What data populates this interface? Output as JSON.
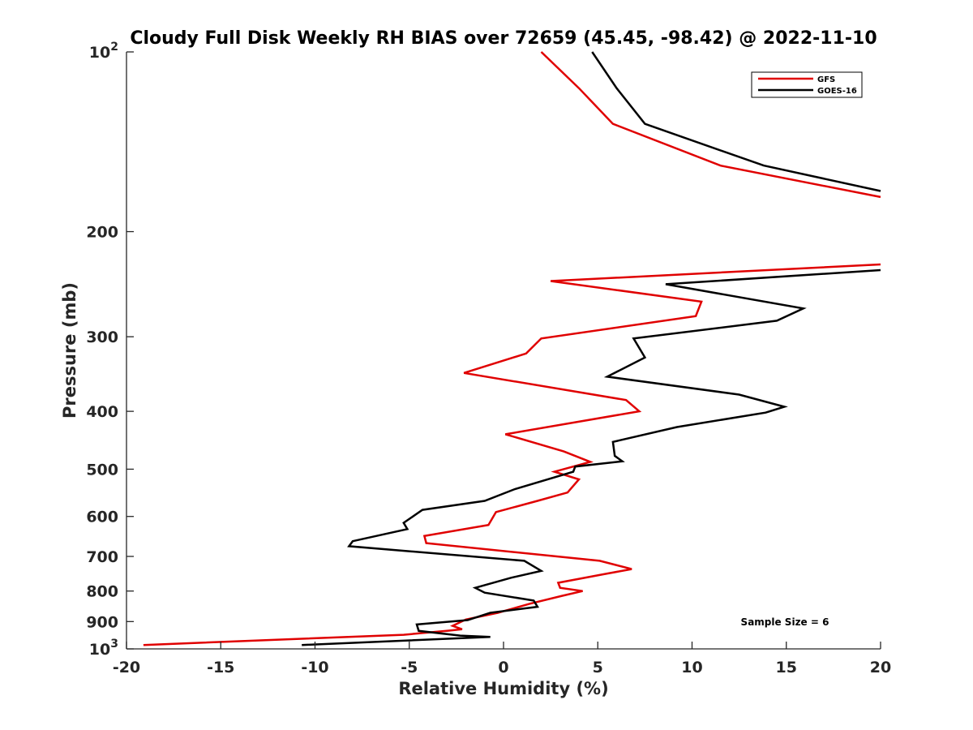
{
  "chart_data": {
    "type": "line",
    "title": "Cloudy Full Disk Weekly RH BIAS over 72659 (45.45, -98.42) @ 2022-11-10",
    "xlabel": "Relative Humidity (%)",
    "ylabel": "Pressure (mb)",
    "xlim": [
      -20,
      20
    ],
    "ylim": [
      100,
      1000
    ],
    "y_scale": "log",
    "y_reversed": true,
    "x_ticks": [
      "-20",
      "-15",
      "-10",
      "-5",
      "0",
      "5",
      "10",
      "15",
      "20"
    ],
    "y_ticks": [
      {
        "value": 100,
        "base": "10",
        "exp": "2"
      },
      {
        "value": 200,
        "label": "200"
      },
      {
        "value": 300,
        "label": "300"
      },
      {
        "value": 400,
        "label": "400"
      },
      {
        "value": 500,
        "label": "500"
      },
      {
        "value": 600,
        "label": "600"
      },
      {
        "value": 700,
        "label": "700"
      },
      {
        "value": 800,
        "label": "800"
      },
      {
        "value": 900,
        "label": "900"
      },
      {
        "value": 1000,
        "base": "10",
        "exp": "3"
      }
    ],
    "legend_position": "top-right",
    "grid": false,
    "annotation": "Sample Size = 6",
    "series": [
      {
        "name": "GFS",
        "color": "#e00000",
        "points": [
          [
            2.0,
            100
          ],
          [
            4.0,
            115
          ],
          [
            5.8,
            132
          ],
          [
            11.5,
            155
          ],
          [
            20,
            175
          ],
          [
            null,
            178
          ],
          [
            20,
            227
          ],
          [
            2.5,
            242
          ],
          [
            10.5,
            262
          ],
          [
            10.2,
            277
          ],
          [
            2.0,
            302
          ],
          [
            1.2,
            320
          ],
          [
            -2.1,
            345
          ],
          [
            6.5,
            383
          ],
          [
            7.2,
            400
          ],
          [
            0.1,
            437
          ],
          [
            3.2,
            467
          ],
          [
            4.6,
            486
          ],
          [
            2.7,
            505
          ],
          [
            4.0,
            520
          ],
          [
            3.4,
            547
          ],
          [
            1.8,
            565
          ],
          [
            -0.4,
            590
          ],
          [
            -0.8,
            620
          ],
          [
            -4.2,
            647
          ],
          [
            -4.1,
            665
          ],
          [
            5.1,
            712
          ],
          [
            6.8,
            735
          ],
          [
            5.3,
            750
          ],
          [
            2.9,
            775
          ],
          [
            3.0,
            790
          ],
          [
            4.2,
            800
          ],
          [
            3.1,
            815
          ],
          [
            1.4,
            840
          ],
          [
            -0.3,
            870
          ],
          [
            -2.0,
            893
          ],
          [
            -2.7,
            915
          ],
          [
            -2.2,
            927
          ],
          [
            -2.9,
            932
          ],
          [
            -5.3,
            947
          ],
          [
            -19.1,
            985
          ]
        ]
      },
      {
        "name": "GOES-16",
        "color": "#000000",
        "points": [
          [
            4.7,
            100
          ],
          [
            6.0,
            115
          ],
          [
            7.5,
            132
          ],
          [
            13.8,
            155
          ],
          [
            20,
            171
          ],
          [
            null,
            174
          ],
          [
            20,
            232
          ],
          [
            8.6,
            245
          ],
          [
            15.9,
            269
          ],
          [
            14.5,
            282
          ],
          [
            6.9,
            302
          ],
          [
            7.5,
            325
          ],
          [
            5.5,
            350
          ],
          [
            12.5,
            375
          ],
          [
            14.9,
            393
          ],
          [
            13.9,
            402
          ],
          [
            9.2,
            425
          ],
          [
            5.8,
            450
          ],
          [
            5.9,
            475
          ],
          [
            6.3,
            485
          ],
          [
            3.8,
            495
          ],
          [
            3.7,
            505
          ],
          [
            0.6,
            540
          ],
          [
            -1.0,
            565
          ],
          [
            -4.3,
            585
          ],
          [
            -5.3,
            615
          ],
          [
            -5.1,
            630
          ],
          [
            -8.0,
            660
          ],
          [
            -8.2,
            673
          ],
          [
            1.1,
            712
          ],
          [
            2.0,
            740
          ],
          [
            0.4,
            760
          ],
          [
            -1.5,
            790
          ],
          [
            -1.0,
            805
          ],
          [
            1.6,
            830
          ],
          [
            1.8,
            850
          ],
          [
            -0.7,
            870
          ],
          [
            -1.9,
            895
          ],
          [
            -4.6,
            910
          ],
          [
            -4.5,
            933
          ],
          [
            -2.3,
            950
          ],
          [
            -0.7,
            955
          ],
          [
            -10.7,
            985
          ]
        ]
      }
    ]
  }
}
